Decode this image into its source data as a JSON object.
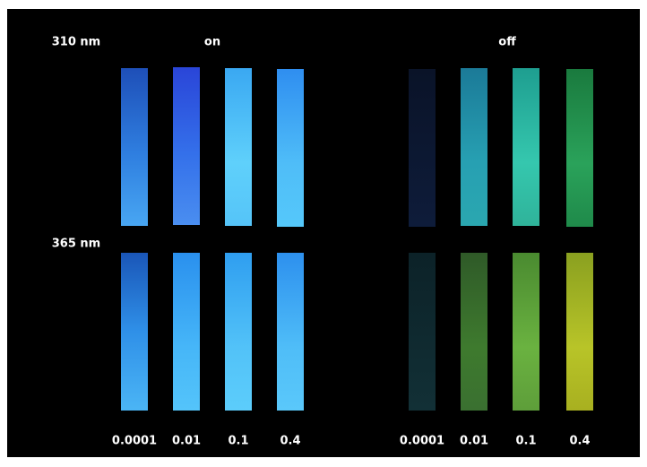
{
  "rows": [
    "310 nm",
    "365 nm"
  ],
  "groups": [
    {
      "state": "on",
      "concentrations": [
        "0.0001",
        "0.01",
        "0.1",
        "0.4"
      ]
    },
    {
      "state": "off",
      "concentrations": [
        "0.0001",
        "0.01",
        "0.1",
        "0.4"
      ]
    }
  ]
}
